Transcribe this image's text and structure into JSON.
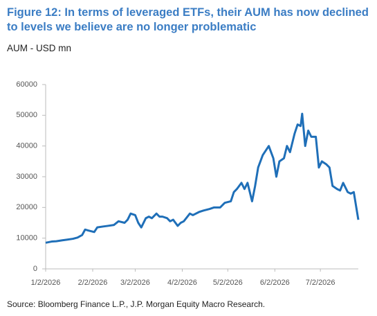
{
  "chart_data": {
    "type": "line",
    "title": "Figure 12: In terms of leveraged ETFs, their AUM has now declined to levels we believe are no longer problematic",
    "subtitle": "AUM - USD mn",
    "source": "Source: Bloomberg Finance L.P., J.P. Morgan Equity Macro Research.",
    "x": [
      "2026-01-02",
      "2026-01-06",
      "2026-01-09",
      "2026-01-13",
      "2026-01-16",
      "2026-01-20",
      "2026-01-23",
      "2026-01-26",
      "2026-01-28",
      "2026-01-30",
      "2026-02-03",
      "2026-02-05",
      "2026-02-09",
      "2026-02-12",
      "2026-02-16",
      "2026-02-19",
      "2026-02-23",
      "2026-02-25",
      "2026-02-27",
      "2026-03-02",
      "2026-03-04",
      "2026-03-06",
      "2026-03-09",
      "2026-03-11",
      "2026-03-13",
      "2026-03-16",
      "2026-03-18",
      "2026-03-20",
      "2026-03-23",
      "2026-03-25",
      "2026-03-27",
      "2026-03-30",
      "2026-04-01",
      "2026-04-03",
      "2026-04-07",
      "2026-04-09",
      "2026-04-13",
      "2026-04-16",
      "2026-04-20",
      "2026-04-23",
      "2026-04-27",
      "2026-04-30",
      "2026-05-04",
      "2026-05-06",
      "2026-05-08",
      "2026-05-11",
      "2026-05-13",
      "2026-05-15",
      "2026-05-18",
      "2026-05-20",
      "2026-05-22",
      "2026-05-25",
      "2026-05-27",
      "2026-05-29",
      "2026-06-01",
      "2026-06-03",
      "2026-06-05",
      "2026-06-08",
      "2026-06-10",
      "2026-06-12",
      "2026-06-15",
      "2026-06-17",
      "2026-06-19",
      "2026-06-20",
      "2026-06-22",
      "2026-06-24",
      "2026-06-26",
      "2026-06-29",
      "2026-07-01",
      "2026-07-03",
      "2026-07-06",
      "2026-07-08",
      "2026-07-10",
      "2026-07-13",
      "2026-07-15",
      "2026-07-17",
      "2026-07-20",
      "2026-07-22",
      "2026-07-24",
      "2026-07-27"
    ],
    "series": [
      {
        "name": "AUM",
        "color": "#1f6fb8",
        "values": [
          8500,
          8900,
          9000,
          9300,
          9500,
          9800,
          10200,
          11000,
          12800,
          12500,
          12000,
          13500,
          13800,
          14000,
          14300,
          15500,
          15000,
          16000,
          18000,
          17500,
          15000,
          13500,
          16500,
          17000,
          16500,
          18000,
          17000,
          17000,
          16500,
          15500,
          16000,
          14000,
          15000,
          15500,
          18000,
          17500,
          18500,
          19000,
          19500,
          20000,
          20000,
          21500,
          22000,
          25000,
          26000,
          28000,
          26000,
          28000,
          22000,
          27000,
          33000,
          37000,
          38500,
          40000,
          36000,
          30000,
          35000,
          36000,
          40000,
          38000,
          44000,
          47000,
          46500,
          50500,
          40000,
          45000,
          43000,
          43000,
          33000,
          35000,
          34000,
          33000,
          27000,
          26000,
          25500,
          28000,
          25000,
          24500,
          25000,
          16000
        ]
      }
    ],
    "xlim": [
      "2026-01-02",
      "2026-07-27"
    ],
    "xticks": [
      {
        "value": "2026-01-02",
        "label": "1/2/2026"
      },
      {
        "value": "2026-02-02",
        "label": "2/2/2026"
      },
      {
        "value": "2026-03-02",
        "label": "3/2/2026"
      },
      {
        "value": "2026-04-02",
        "label": "4/2/2026"
      },
      {
        "value": "2026-05-02",
        "label": "5/2/2026"
      },
      {
        "value": "2026-06-02",
        "label": "6/2/2026"
      },
      {
        "value": "2026-07-02",
        "label": "7/2/2026"
      }
    ],
    "ylim": [
      0,
      60000
    ],
    "yticks": [
      0,
      10000,
      20000,
      30000,
      40000,
      50000,
      60000
    ],
    "grid": false
  }
}
